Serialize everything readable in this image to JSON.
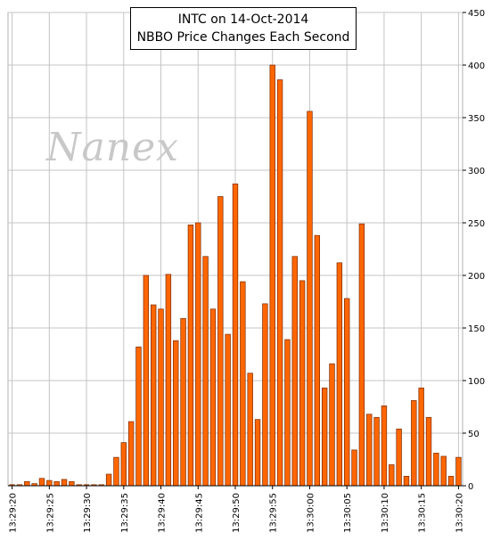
{
  "watermark": "Nanex",
  "chart_data": {
    "type": "bar",
    "title": "INTC on 14-Oct-2014",
    "subtitle": "NBBO Price Changes Each Second",
    "xlabel": "",
    "ylabel": "",
    "ylim": [
      0,
      450
    ],
    "y_ticks": [
      0,
      50,
      100,
      150,
      200,
      250,
      300,
      350,
      400,
      450
    ],
    "x_tick_labels": [
      "13:29:20",
      "13:29:25",
      "13:29:30",
      "13:29:35",
      "13:29:40",
      "13:29:45",
      "13:29:50",
      "13:29:55",
      "13:30:00",
      "13:30:05",
      "13:30:10",
      "13:30:15",
      "13:30:20"
    ],
    "grid": true,
    "y_axis_side": "right",
    "bar_color": "#ff6600",
    "bar_edge_color": "#7a2a00",
    "categories": [
      "13:29:20",
      "13:29:21",
      "13:29:22",
      "13:29:23",
      "13:29:24",
      "13:29:25",
      "13:29:26",
      "13:29:27",
      "13:29:28",
      "13:29:29",
      "13:29:30",
      "13:29:31",
      "13:29:32",
      "13:29:33",
      "13:29:34",
      "13:29:35",
      "13:29:36",
      "13:29:37",
      "13:29:38",
      "13:29:39",
      "13:29:40",
      "13:29:41",
      "13:29:42",
      "13:29:43",
      "13:29:44",
      "13:29:45",
      "13:29:46",
      "13:29:47",
      "13:29:48",
      "13:29:49",
      "13:29:50",
      "13:29:51",
      "13:29:52",
      "13:29:53",
      "13:29:54",
      "13:29:55",
      "13:29:56",
      "13:29:57",
      "13:29:58",
      "13:29:59",
      "13:30:00",
      "13:30:01",
      "13:30:02",
      "13:30:03",
      "13:30:04",
      "13:30:05",
      "13:30:06",
      "13:30:07",
      "13:30:08",
      "13:30:09",
      "13:30:10",
      "13:30:11",
      "13:30:12",
      "13:30:13",
      "13:30:14",
      "13:30:15",
      "13:30:16",
      "13:30:17",
      "13:30:18",
      "13:30:19",
      "13:30:20"
    ],
    "values": [
      1,
      1,
      4,
      2,
      7,
      5,
      4,
      6,
      4,
      1,
      1,
      1,
      1,
      11,
      27,
      41,
      61,
      132,
      200,
      172,
      168,
      201,
      138,
      159,
      248,
      250,
      218,
      168,
      275,
      144,
      287,
      194,
      107,
      63,
      173,
      400,
      386,
      139,
      218,
      195,
      356,
      238,
      93,
      116,
      212,
      178,
      34,
      249,
      68,
      65,
      76,
      20,
      54,
      9,
      81,
      93,
      65,
      31,
      28,
      9,
      27
    ]
  }
}
